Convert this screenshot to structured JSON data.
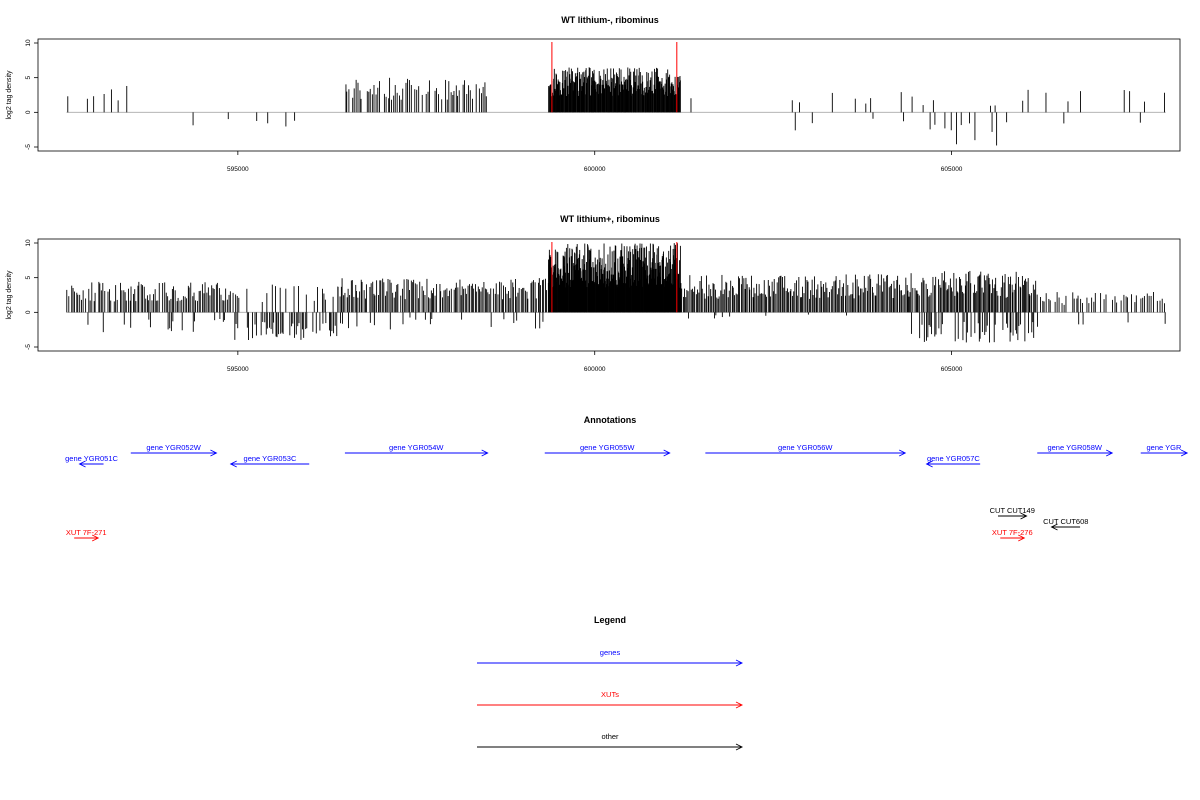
{
  "colors": {
    "gene": "#0000ff",
    "xut": "#ff0000",
    "other": "#000000",
    "marker": "#ff0000",
    "baseline": "#aaaaaa"
  },
  "chart_data": [
    {
      "type": "bar",
      "title": "WT lithium-, ribominus",
      "ylabel": "log2 tag density",
      "xlim": [
        592200,
        608200
      ],
      "ylim": [
        -5,
        10
      ],
      "yticks": [
        -5,
        0,
        5,
        10
      ],
      "xticks": [
        595000,
        600000,
        605000
      ],
      "markers": [
        599400,
        601150
      ],
      "grid": false,
      "profile": {
        "seed": 11,
        "segments": [
          {
            "x0": 592600,
            "x1": 593500,
            "step": 120,
            "pos": 0.8,
            "neg": 0.0,
            "ymax": 4.0,
            "ymin": 0
          },
          {
            "x0": 593500,
            "x1": 594200,
            "step": 180,
            "pos": 0.5,
            "neg": 0.0,
            "ymax": 3.5,
            "ymin": 0
          },
          {
            "x0": 594200,
            "x1": 595000,
            "step": 200,
            "pos": 0.3,
            "neg": 0.4,
            "ymax": 3.0,
            "ymin": -3
          },
          {
            "x0": 595000,
            "x1": 595900,
            "step": 180,
            "pos": 0.1,
            "neg": 0.5,
            "ymax": 1.0,
            "ymin": -3
          },
          {
            "x0": 595900,
            "x1": 596500,
            "step": 200,
            "pos": 0.0,
            "neg": 0.0,
            "ymax": 0,
            "ymin": 0
          },
          {
            "x0": 596500,
            "x1": 598500,
            "step": 25,
            "pos": 0.9,
            "neg": 0.0,
            "ymax": 5.0,
            "ymin": 0
          },
          {
            "x0": 598500,
            "x1": 599350,
            "step": 130,
            "pos": 0.15,
            "neg": 0.0,
            "ymax": 2.0,
            "ymin": 0
          },
          {
            "x0": 599350,
            "x1": 601200,
            "step": 8,
            "pos": 1.0,
            "neg": 0.0,
            "ymax": 6.5,
            "ymin": 0
          },
          {
            "x0": 601200,
            "x1": 602300,
            "step": 250,
            "pos": 0.25,
            "neg": 0.0,
            "ymax": 3.0,
            "ymin": 0
          },
          {
            "x0": 602300,
            "x1": 603300,
            "step": 140,
            "pos": 0.4,
            "neg": 0.2,
            "ymax": 3.0,
            "ymin": -3
          },
          {
            "x0": 603300,
            "x1": 604600,
            "step": 110,
            "pos": 0.4,
            "neg": 0.1,
            "ymax": 3.0,
            "ymin": -1.5
          },
          {
            "x0": 604600,
            "x1": 605600,
            "step": 70,
            "pos": 0.3,
            "neg": 0.6,
            "ymax": 2.0,
            "ymin": -5
          },
          {
            "x0": 605600,
            "x1": 608000,
            "step": 90,
            "pos": 0.4,
            "neg": 0.05,
            "ymax": 3.3,
            "ymin": -2.5
          }
        ]
      }
    },
    {
      "type": "bar",
      "title": "WT lithium+, ribominus",
      "ylabel": "log2 tag density",
      "xlim": [
        592200,
        608200
      ],
      "ylim": [
        -5,
        10
      ],
      "yticks": [
        -5,
        0,
        5,
        10
      ],
      "xticks": [
        595000,
        600000,
        605000
      ],
      "markers": [
        599400,
        601150
      ],
      "grid": false,
      "profile": {
        "seed": 23,
        "segments": [
          {
            "x0": 592600,
            "x1": 594900,
            "step": 22,
            "pos": 0.9,
            "neg": 0.12,
            "ymax": 4.5,
            "ymin": -3
          },
          {
            "x0": 594900,
            "x1": 596400,
            "step": 22,
            "pos": 0.35,
            "neg": 0.7,
            "ymax": 4.0,
            "ymin": -4
          },
          {
            "x0": 596400,
            "x1": 599350,
            "step": 20,
            "pos": 0.95,
            "neg": 0.08,
            "ymax": 5.0,
            "ymin": -2.5
          },
          {
            "x0": 599350,
            "x1": 601200,
            "step": 6,
            "pos": 1.0,
            "neg": 0.0,
            "ymax": 10.0,
            "ymin": 0
          },
          {
            "x0": 601200,
            "x1": 604400,
            "step": 18,
            "pos": 1.0,
            "neg": 0.02,
            "ymax": 5.5,
            "ymin": -1
          },
          {
            "x0": 604400,
            "x1": 606200,
            "step": 16,
            "pos": 0.95,
            "neg": 0.45,
            "ymax": 6.0,
            "ymin": -4.5
          },
          {
            "x0": 606200,
            "x1": 608000,
            "step": 30,
            "pos": 0.7,
            "neg": 0.1,
            "ymax": 3.0,
            "ymin": -2.5
          }
        ]
      }
    }
  ],
  "annotations": {
    "title": "Annotations",
    "xlim": [
      592200,
      608200
    ],
    "rows": {
      "upper": [
        {
          "label": "gene YGR052W",
          "x0": 593500,
          "x1": 594700,
          "kind": "gene",
          "strand": "+"
        },
        {
          "label": "gene YGR054W",
          "x0": 596500,
          "x1": 598500,
          "kind": "gene",
          "strand": "+"
        },
        {
          "label": "gene YGR055W",
          "x0": 599300,
          "x1": 601050,
          "kind": "gene",
          "strand": "+"
        },
        {
          "label": "gene YGR056W",
          "x0": 601550,
          "x1": 604350,
          "kind": "gene",
          "strand": "+"
        },
        {
          "label": "gene YGR058W",
          "x0": 606200,
          "x1": 607250,
          "kind": "gene",
          "strand": "+"
        },
        {
          "label": "gene YGR",
          "x0": 607650,
          "x1": 608300,
          "kind": "gene",
          "strand": "+"
        }
      ],
      "lower": [
        {
          "label": "gene YGR051C",
          "x0": 593000,
          "x1": 592900,
          "kind": "gene",
          "strand": "-"
        },
        {
          "label": "gene YGR053C",
          "x0": 594900,
          "x1": 596000,
          "kind": "gene",
          "strand": "-"
        },
        {
          "label": "gene YGR057C",
          "x0": 604650,
          "x1": 605400,
          "kind": "gene",
          "strand": "-"
        }
      ],
      "other": [
        {
          "label": "CUT CUT149",
          "x0": 605650,
          "x1": 606050,
          "kind": "other",
          "strand": "+",
          "row": 0
        },
        {
          "label": "CUT CUT608",
          "x0": 606400,
          "x1": 606800,
          "kind": "other",
          "strand": "-",
          "row": 1
        },
        {
          "label": "XUT 7F-276",
          "x0": 605700,
          "x1": 606000,
          "kind": "xut",
          "strand": "+",
          "row": 2
        },
        {
          "label": "XUT 7F-271",
          "x0": 592750,
          "x1": 593000,
          "kind": "xut",
          "strand": "+",
          "row": 2
        }
      ]
    }
  },
  "legend": {
    "title": "Legend",
    "entries": [
      {
        "label": "genes",
        "kind": "gene"
      },
      {
        "label": "XUTs",
        "kind": "xut"
      },
      {
        "label": "other",
        "kind": "other"
      }
    ]
  }
}
